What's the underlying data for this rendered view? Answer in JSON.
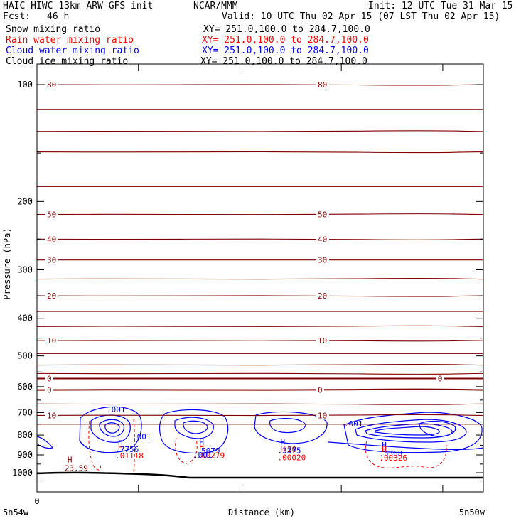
{
  "header": {
    "model": "HAIC-HIWC 13km ARW-GFS init",
    "org": "NCAR/MMM",
    "init": "Init: 12 UTC Tue 31 Mar 15",
    "fcst_label": "Fcst:",
    "fcst_value": "46 h",
    "valid": "Valid: 10 UTC Thu 02 Apr 15 (07 LST Thu 02 Apr 15)",
    "fields": [
      {
        "name": "Snow mixing ratio",
        "xy": "XY= 251.0,100.0 to 284.7,100.0",
        "color": "#000000"
      },
      {
        "name": "Rain water mixing ratio",
        "xy": "XY= 251.0,100.0 to 284.7,100.0",
        "color": "#ff0000"
      },
      {
        "name": "Cloud water mixing ratio",
        "xy": "XY= 251.0,100.0 to 284.7,100.0",
        "color": "#0000ff"
      },
      {
        "name": "Cloud ice mixing ratio",
        "xy": "XY= 251.0,100.0 to 284.7,100.0",
        "color": "#000000"
      }
    ]
  },
  "chart_data": {
    "type": "contour_cross_section",
    "ylabel": "Pressure (hPa)",
    "xlabel": "Distance (km)",
    "yticks": [
      100,
      200,
      300,
      400,
      500,
      600,
      700,
      800,
      900,
      1000
    ],
    "ylim": [
      1050,
      50
    ],
    "xlim": [
      0,
      440
    ],
    "x_start_label": "0",
    "x_left_label": "5n54w",
    "x_right_label": "5n50w",
    "temperature_isotherms": {
      "color": "#800000",
      "lines": [
        {
          "p": 612,
          "label": "0"
        },
        {
          "p": 572,
          "label": "0",
          "label_x": 395
        },
        {
          "p": 555
        },
        {
          "p": 712,
          "label": "10"
        },
        {
          "p": 750
        },
        {
          "p": 665
        },
        {
          "p": 528
        },
        {
          "p": 493
        },
        {
          "p": 456,
          "label": "10"
        },
        {
          "p": 420
        },
        {
          "p": 384
        },
        {
          "p": 350,
          "label": "20"
        },
        {
          "p": 317
        },
        {
          "p": 283,
          "label": "30"
        },
        {
          "p": 250,
          "label": "40"
        },
        {
          "p": 216,
          "label": "50"
        },
        {
          "p": 183
        },
        {
          "p": 149
        },
        {
          "p": 132
        },
        {
          "p": 116
        },
        {
          "p": 100,
          "label": "80"
        }
      ]
    },
    "maxima": [
      {
        "field": "Cloud water mixing ratio",
        "label": "H",
        "value": ".7756",
        "x": 80,
        "p": 885
      },
      {
        "field": "Rain water mixing ratio",
        "label": "H",
        "value": ".01118",
        "x": 80,
        "p": 920
      },
      {
        "field": "Cloud water mixing ratio",
        "label": "H",
        "value": ".5079",
        "x": 160,
        "p": 892
      },
      {
        "field": "Rain water mixing ratio",
        "label": "H",
        "value": ".00279",
        "x": 160,
        "p": 918
      },
      {
        "field": "Cloud water mixing ratio",
        "label": "H",
        "value": ".3375",
        "x": 240,
        "p": 890
      },
      {
        "field": "Rain water mixing ratio",
        "label": "H",
        "value": ".00020",
        "x": 240,
        "p": 928
      },
      {
        "field": "Cloud water mixing ratio",
        "label": "H",
        "value": ".5368",
        "x": 340,
        "p": 908
      },
      {
        "field": "Rain water mixing ratio",
        "label": "H",
        "value": ".00326",
        "x": 340,
        "p": 930
      },
      {
        "field": "Temperature",
        "label": "H",
        "value": "23.59",
        "x": 30,
        "p": 990
      }
    ],
    "contour_labels": [
      {
        "field": "Cloud water mixing ratio",
        "value": ".001"
      },
      {
        "field": "Cloud water mixing ratio",
        "value": ".001"
      },
      {
        "field": "Cloud water mixing ratio",
        "value": ".001"
      },
      {
        "field": "Cloud water mixing ratio",
        "value": ".001"
      },
      {
        "field": "Temperature",
        "value": "20"
      }
    ],
    "terrain": {
      "color": "#000000",
      "p_left": 1000,
      "p_right": 1012
    }
  }
}
